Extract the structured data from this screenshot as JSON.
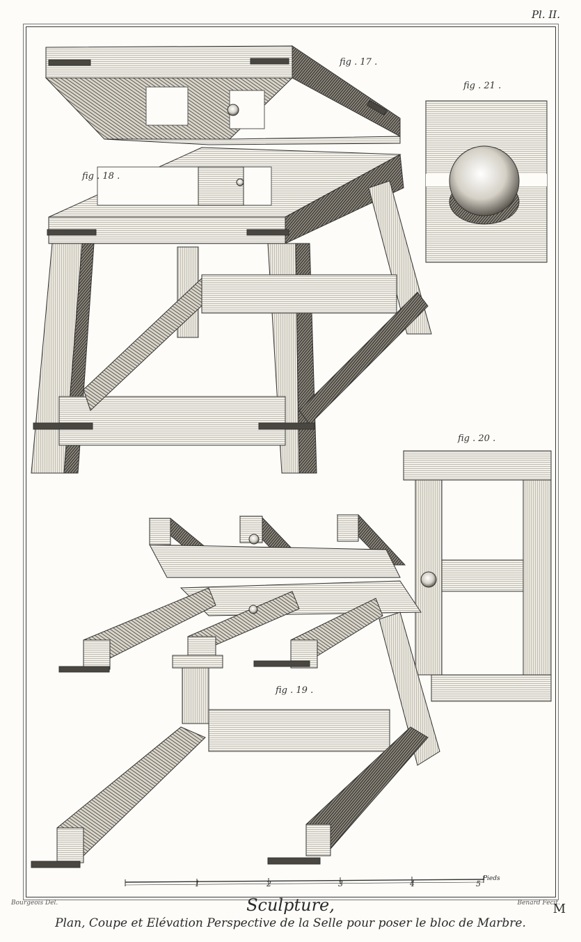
{
  "plate": {
    "number": "Pl. II."
  },
  "figures": {
    "fig17": "fig . 17 .",
    "fig18": "fig . 18 .",
    "fig19": "fig . 19 .",
    "fig20": "fig . 20 .",
    "fig21": "fig . 21 ."
  },
  "scale": {
    "numbers": [
      "1",
      "2",
      "3",
      "4",
      "5"
    ],
    "unit": "Pieds"
  },
  "credits": {
    "left": "Bourgeois Del.",
    "right": "Benard Fecit."
  },
  "title": "Sculpture,",
  "subtitle": "Plan, Coupe et Elévation Perspective de la Selle pour poser le bloc de Marbre.",
  "corner_letter": "M"
}
